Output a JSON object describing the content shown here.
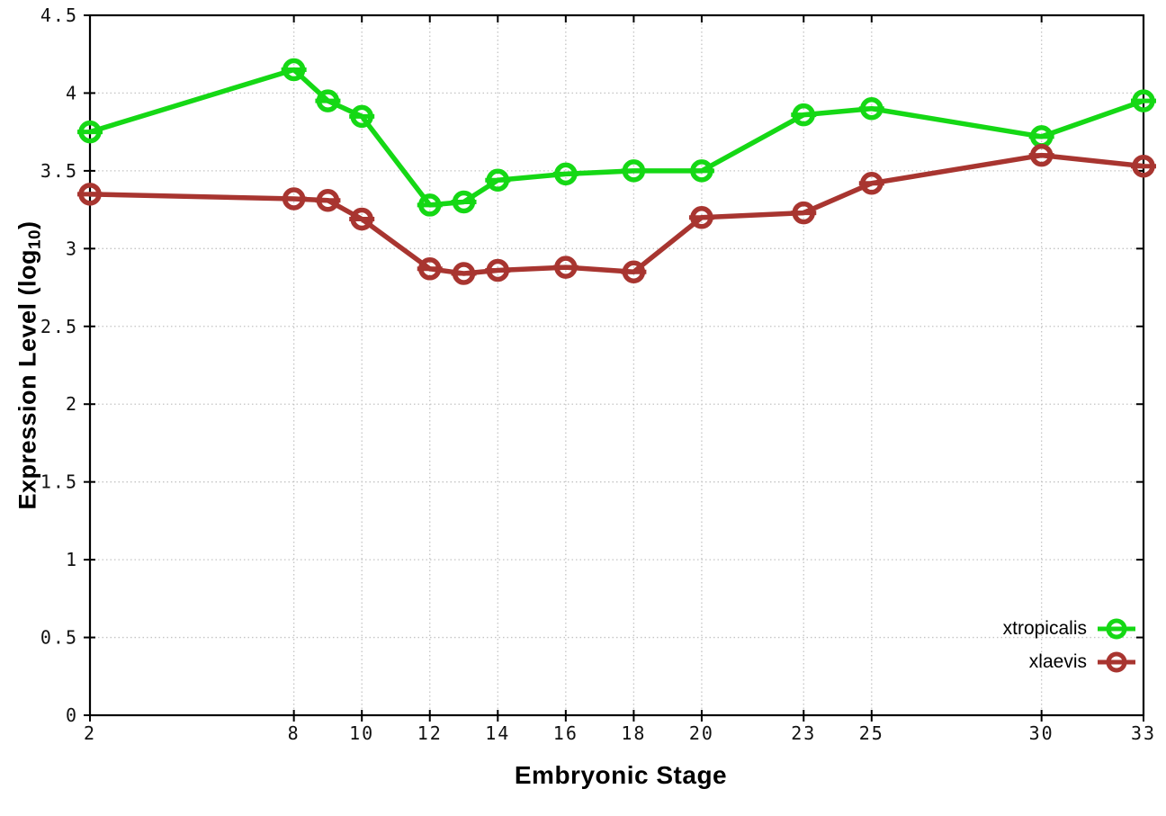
{
  "figure": {
    "background": "#ffffff",
    "x_axis_label": "Embryonic Stage",
    "y_axis_label": "Expression Level (log10)",
    "y_axis_label_prefix": "Expression Level (log",
    "y_axis_label_sub": "10",
    "y_axis_label_suffix": ")"
  },
  "chart_data": {
    "type": "line",
    "title": "",
    "xlabel": "Embryonic Stage",
    "ylabel": "Expression Level (log10)",
    "x": [
      2,
      8,
      9,
      10,
      12,
      13,
      14,
      16,
      18,
      20,
      23,
      25,
      30,
      33
    ],
    "series": [
      {
        "name": "xtropicalis",
        "color": "#15d815",
        "values": [
          3.75,
          4.15,
          3.95,
          3.85,
          3.28,
          3.3,
          3.44,
          3.48,
          3.5,
          3.5,
          3.86,
          3.9,
          3.72,
          3.95
        ]
      },
      {
        "name": "xlaevis",
        "color": "#a83530",
        "values": [
          3.35,
          3.32,
          3.31,
          3.19,
          2.87,
          2.84,
          2.86,
          2.88,
          2.85,
          3.2,
          3.23,
          3.42,
          3.6,
          3.53
        ]
      }
    ],
    "xticks": [
      2,
      8,
      10,
      12,
      14,
      16,
      18,
      20,
      23,
      25,
      30,
      33
    ],
    "yticks": [
      0,
      0.5,
      1,
      1.5,
      2,
      2.5,
      3,
      3.5,
      4,
      4.5
    ],
    "xlim": [
      2,
      33
    ],
    "ylim": [
      0,
      4.5
    ],
    "grid": true,
    "grid_style": "dotted",
    "legend_position": "bottom-right",
    "marker": "open-circle-with-errorbar-cap",
    "axis_color": "#000000",
    "grid_color": "#c4c4c4",
    "tick_label_color": "#111111"
  }
}
